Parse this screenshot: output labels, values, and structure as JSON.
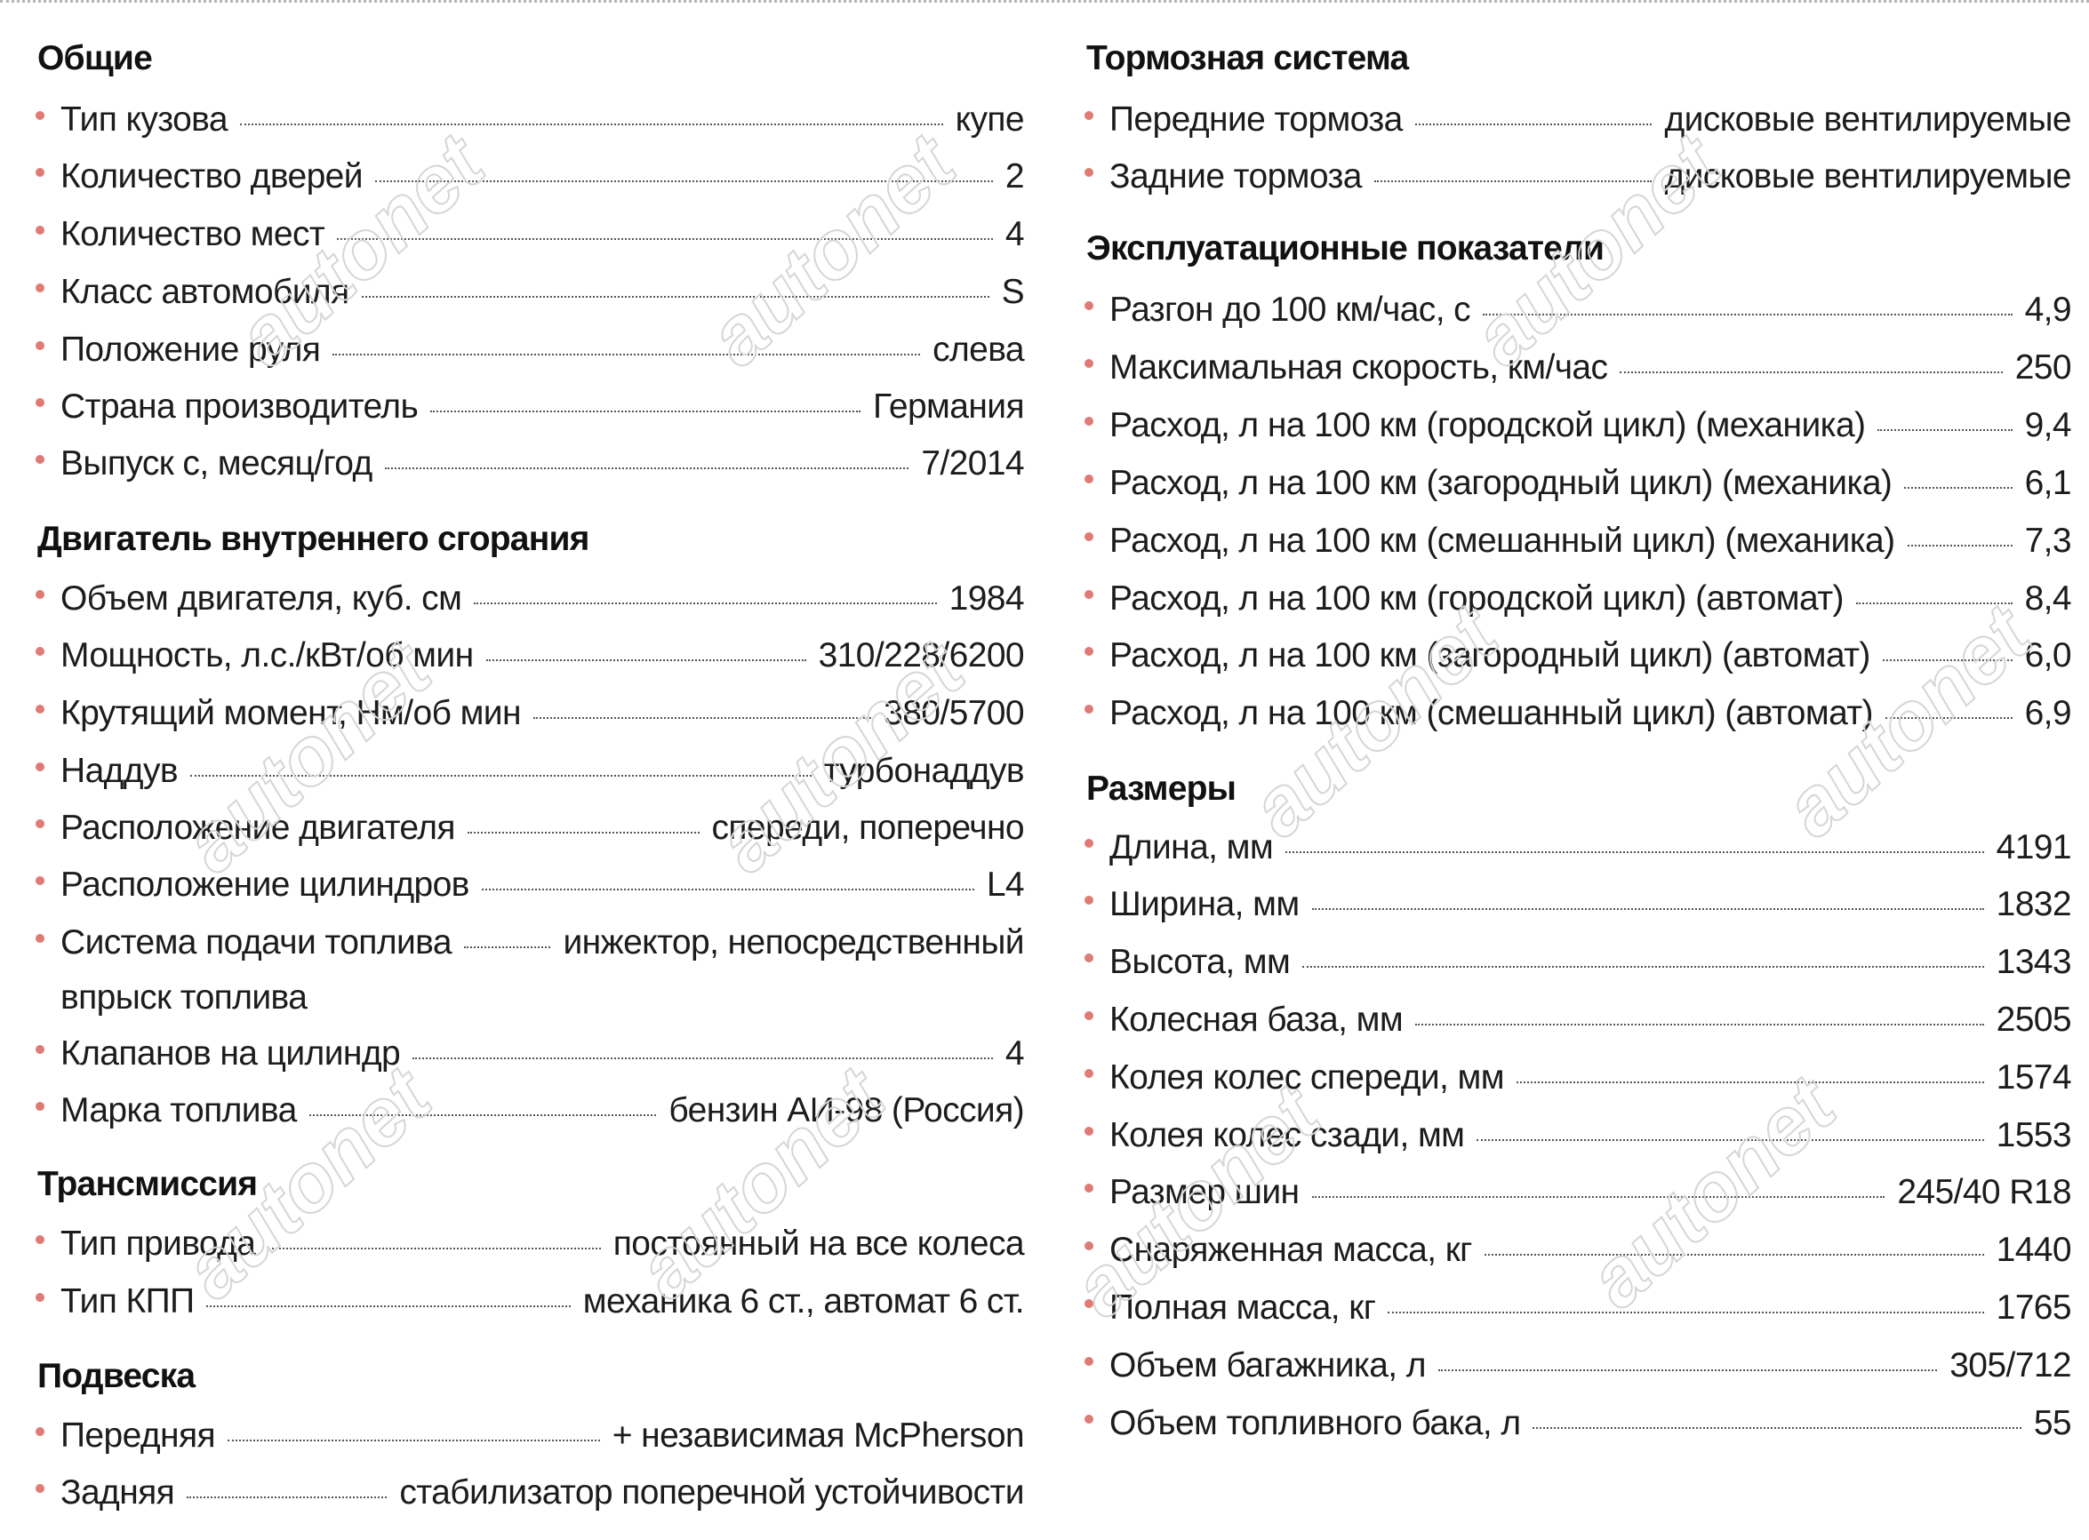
{
  "watermark_text": "autonet",
  "accent_color": "#e07a74",
  "left_sections": [
    {
      "title": "Общие",
      "rows": [
        {
          "label": "Тип кузова",
          "value": "купе"
        },
        {
          "label": "Количество дверей",
          "value": "2"
        },
        {
          "label": "Количество мест",
          "value": "4"
        },
        {
          "label": "Класс автомобиля",
          "value": "S"
        },
        {
          "label": "Положение руля",
          "value": "слева"
        },
        {
          "label": "Страна производитель",
          "value": "Германия"
        },
        {
          "label": "Выпуск с, месяц/год",
          "value": "7/2014"
        }
      ]
    },
    {
      "title": "Двигатель внутреннего сгорания",
      "rows": [
        {
          "label": "Объем двигателя, куб. см",
          "value": "1984"
        },
        {
          "label": "Мощность, л.с./кВт/об мин",
          "value": "310/228/6200"
        },
        {
          "label": "Крутящий момент, Нм/об мин",
          "value": "380/5700"
        },
        {
          "label": "Наддув",
          "value": "турбонаддув"
        },
        {
          "label": "Расположение двигателя",
          "value": "спереди, поперечно"
        },
        {
          "label": "Расположение цилиндров",
          "value": "L4"
        },
        {
          "label": "Система подачи топлива",
          "value": "инжектор, непосредственный",
          "continuation": "впрыск топлива"
        },
        {
          "label": "Клапанов на цилиндр",
          "value": "4"
        },
        {
          "label": "Марка топлива",
          "value": "бензин АИ-98 (Россия)"
        }
      ]
    },
    {
      "title": "Трансмиссия",
      "rows": [
        {
          "label": "Тип привода",
          "value": "постоянный на все колеса"
        },
        {
          "label": "Тип КПП",
          "value": "механика 6 ст., автомат 6 ст."
        }
      ]
    },
    {
      "title": "Подвеска",
      "rows": [
        {
          "label": "Передняя",
          "value": "+ независимая McPherson"
        },
        {
          "label": "Задняя",
          "value": "стабилизатор поперечной устойчивости"
        }
      ]
    }
  ],
  "right_sections": [
    {
      "title": "Тормозная система",
      "rows": [
        {
          "label": "Передние тормоза",
          "value": "дисковые вентилируемые"
        },
        {
          "label": "Задние тормоза",
          "value": "дисковые вентилируемые"
        }
      ]
    },
    {
      "title": "Эксплуатационные показатели",
      "rows": [
        {
          "label": "Разгон до 100 км/час, с",
          "value": "4,9"
        },
        {
          "label": "Максимальная скорость, км/час",
          "value": "250"
        },
        {
          "label": "Расход, л на 100 км (городской цикл) (механика)",
          "value": "9,4"
        },
        {
          "label": "Расход, л на 100 км (загородный цикл)  (механика)",
          "value": "6,1"
        },
        {
          "label": "Расход, л на 100 км (смешанный цикл)  (механика)",
          "value": "7,3"
        },
        {
          "label": "Расход, л на 100 км (городской цикл) (автомат)",
          "value": "8,4"
        },
        {
          "label": "Расход, л на 100 км (загородный цикл) (автомат)",
          "value": "6,0"
        },
        {
          "label": "Расход, л на 100 км (смешанный цикл) (автомат)",
          "value": "6,9"
        }
      ]
    },
    {
      "title": "Размеры",
      "rows": [
        {
          "label": "Длина, мм",
          "value": "4191"
        },
        {
          "label": "Ширина, мм",
          "value": "1832"
        },
        {
          "label": "Высота, мм",
          "value": "1343"
        },
        {
          "label": "Колесная база, мм",
          "value": "2505"
        },
        {
          "label": "Колея колес спереди, мм",
          "value": "1574"
        },
        {
          "label": "Колея колес сзади, мм",
          "value": "1553"
        },
        {
          "label": "Размер шин",
          "value": "245/40 R18"
        },
        {
          "label": "Снаряженная масса, кг",
          "value": "1440"
        },
        {
          "label": "Полная масса, кг",
          "value": "1765"
        },
        {
          "label": "Объем багажника, л",
          "value": "305/712"
        },
        {
          "label": "Объем топливного бака, л",
          "value": "55"
        }
      ]
    }
  ]
}
